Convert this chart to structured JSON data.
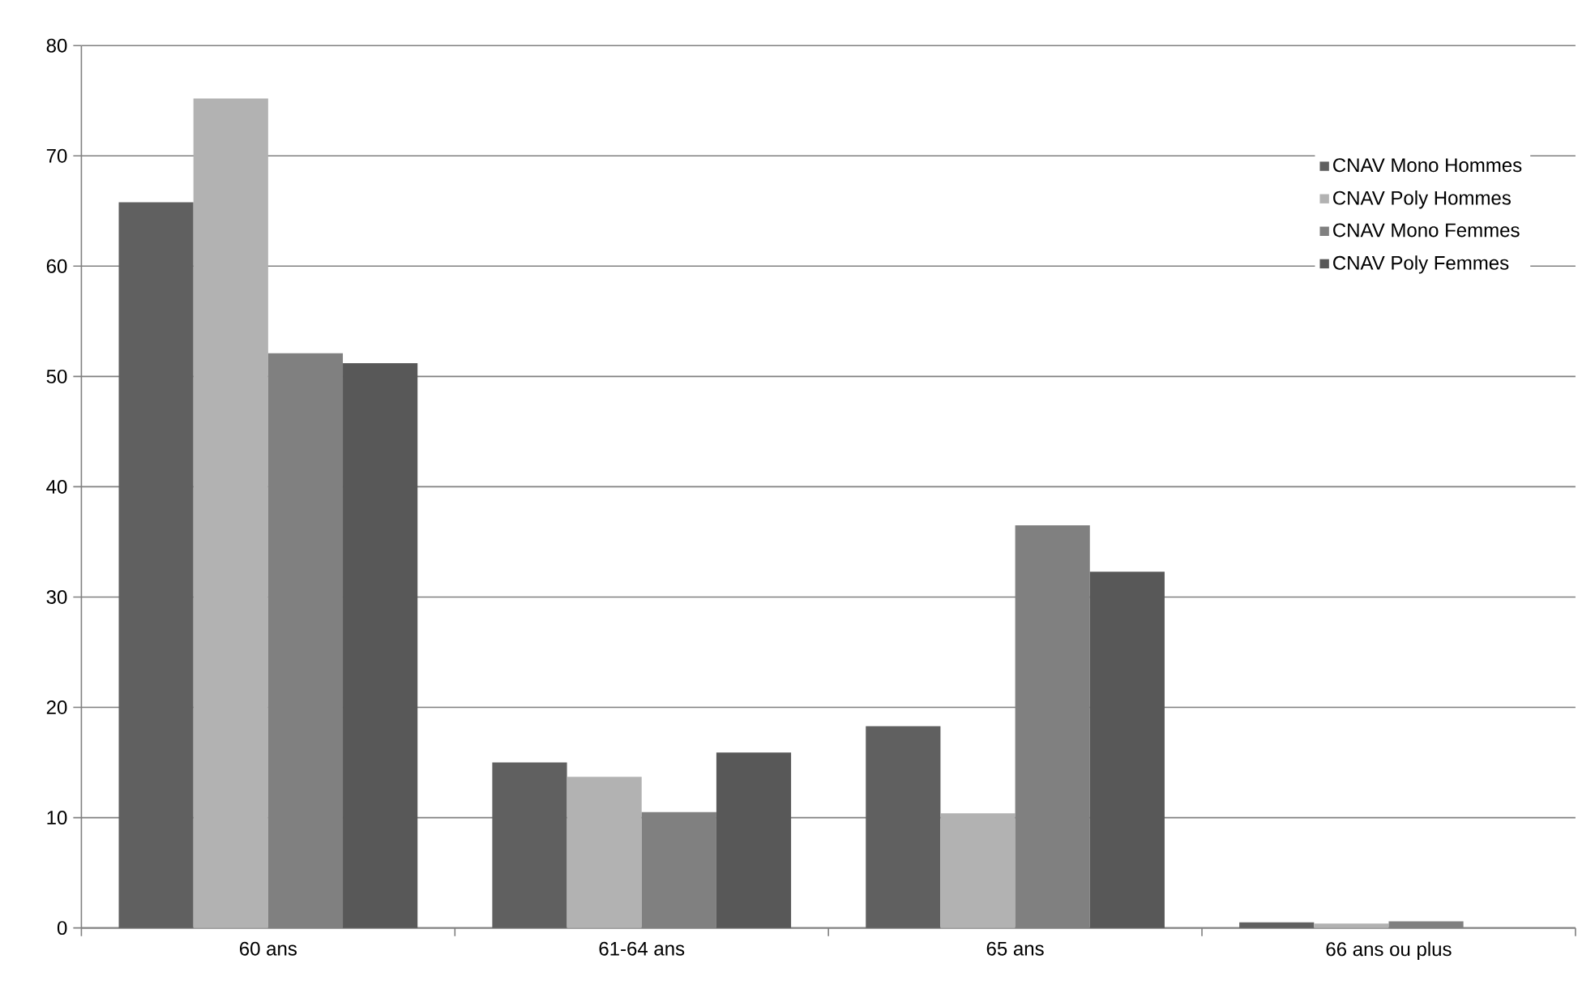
{
  "chart_data": {
    "type": "bar",
    "categories": [
      "60 ans",
      "61-64 ans",
      "65 ans",
      "66 ans ou plus"
    ],
    "series": [
      {
        "name": "CNAV Mono Hommes",
        "color": "#606060",
        "values": [
          65.8,
          15.0,
          18.3,
          0.5
        ]
      },
      {
        "name": "CNAV Poly Hommes",
        "color": "#b2b2b2",
        "values": [
          75.2,
          13.7,
          10.4,
          0.4
        ]
      },
      {
        "name": "CNAV Mono Femmes",
        "color": "#808080",
        "values": [
          52.1,
          10.5,
          36.5,
          0.6
        ]
      },
      {
        "name": "CNAV Poly Femmes",
        "color": "#585858",
        "values": [
          51.2,
          15.9,
          32.3,
          null
        ]
      }
    ],
    "ylim": [
      0,
      80
    ],
    "yticks": [
      0,
      10,
      20,
      30,
      40,
      50,
      60,
      70,
      80
    ],
    "grid": "y",
    "legend": "top right"
  }
}
